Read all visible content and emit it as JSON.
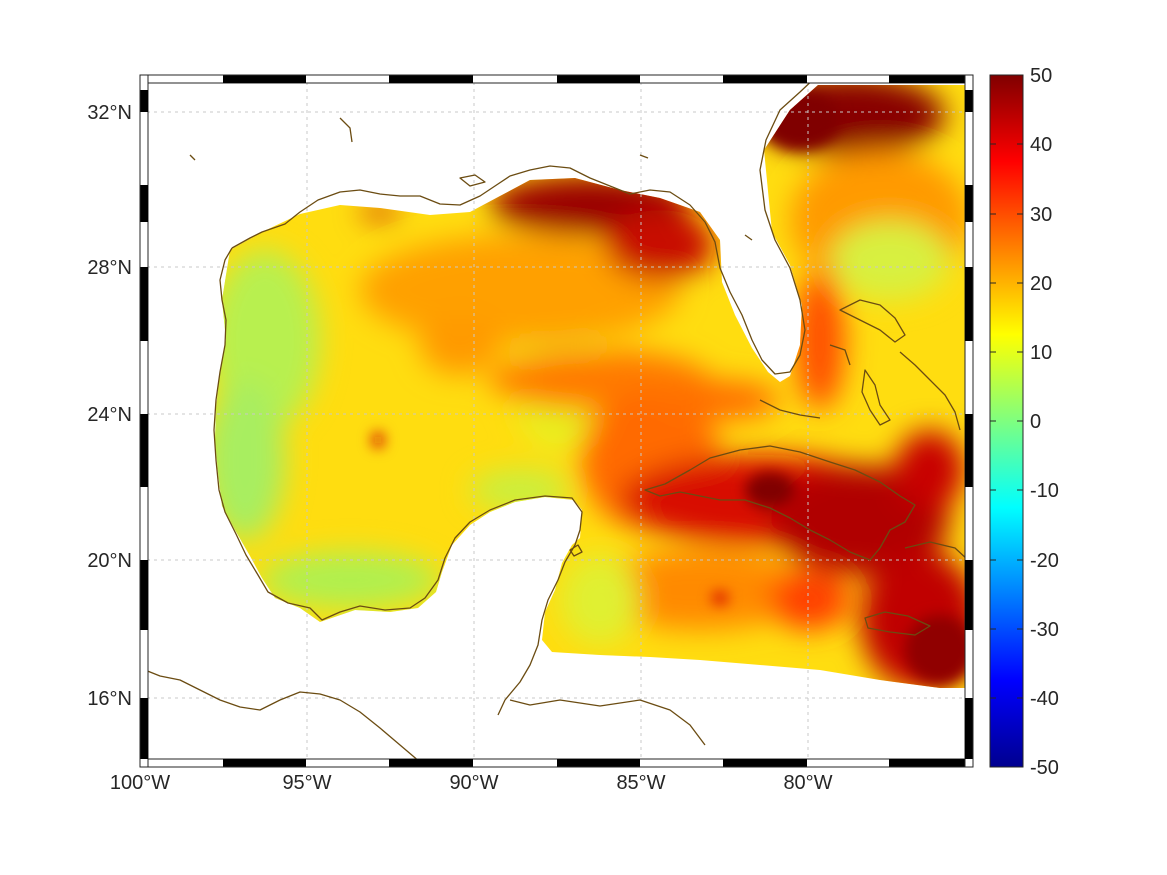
{
  "map": {
    "lon_ticks": [
      "100°W",
      "95°W",
      "90°W",
      "85°W",
      "80°W"
    ],
    "lat_ticks": [
      "32°N",
      "28°N",
      "24°N",
      "20°N",
      "16°N"
    ],
    "lon_range": [
      -100,
      -75.2
    ],
    "lat_range": [
      14.2,
      33.0
    ],
    "coastline_color": "#6b4c12",
    "grid": true
  },
  "colorbar": {
    "ticks": [
      "50",
      "40",
      "30",
      "20",
      "10",
      "0",
      "-10",
      "-20",
      "-30",
      "-40",
      "-50"
    ],
    "range": [
      -50,
      50
    ],
    "colormap": "jet"
  }
}
